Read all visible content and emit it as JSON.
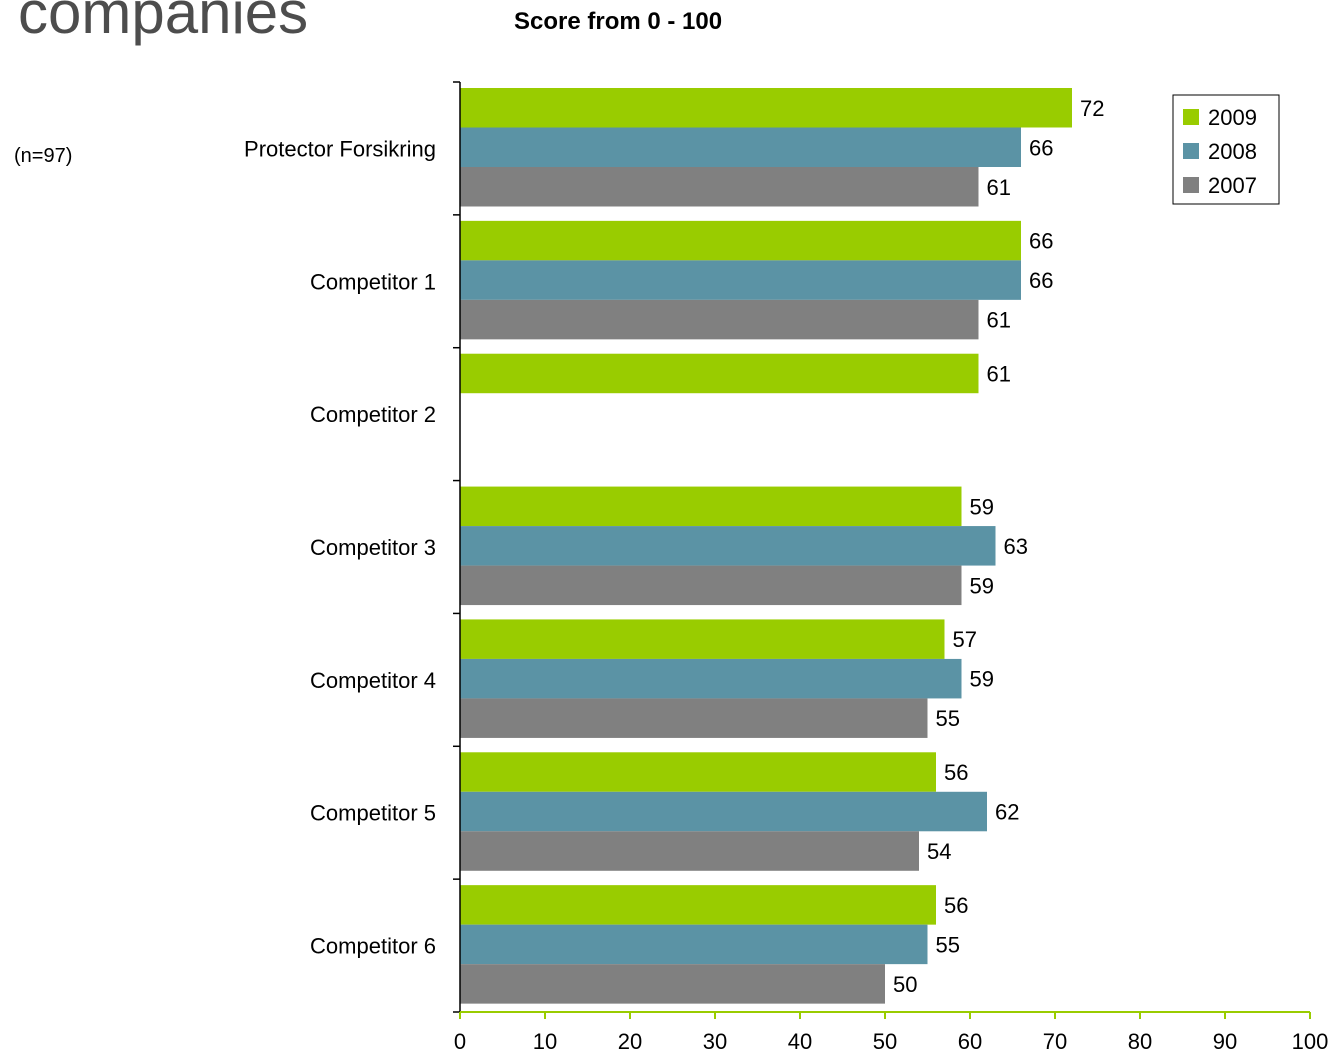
{
  "header": {
    "title": "companies",
    "subtitle": "Score from 0 - 100",
    "sample_note": "(n=97)"
  },
  "chart_data": {
    "type": "bar",
    "orientation": "horizontal",
    "title": "Score from 0 - 100",
    "xlabel": "",
    "ylabel": "",
    "xlim": [
      0,
      100
    ],
    "x_ticks": [
      0,
      10,
      20,
      30,
      40,
      50,
      60,
      70,
      80,
      90,
      100
    ],
    "categories": [
      "Protector Forsikring",
      "Competitor 1",
      "Competitor 2",
      "Competitor 3",
      "Competitor 4",
      "Competitor 5",
      "Competitor 6"
    ],
    "series": [
      {
        "name": "2009",
        "color": "#99cc00",
        "values": [
          72,
          66,
          61,
          59,
          57,
          56,
          56
        ]
      },
      {
        "name": "2008",
        "color": "#5b93a5",
        "values": [
          66,
          66,
          null,
          63,
          59,
          62,
          55
        ]
      },
      {
        "name": "2007",
        "color": "#808080",
        "values": [
          61,
          61,
          null,
          59,
          55,
          54,
          50
        ]
      }
    ],
    "legend_position": "top-right",
    "grid": false,
    "data_labels": true,
    "axis_color": "#99cc00"
  }
}
